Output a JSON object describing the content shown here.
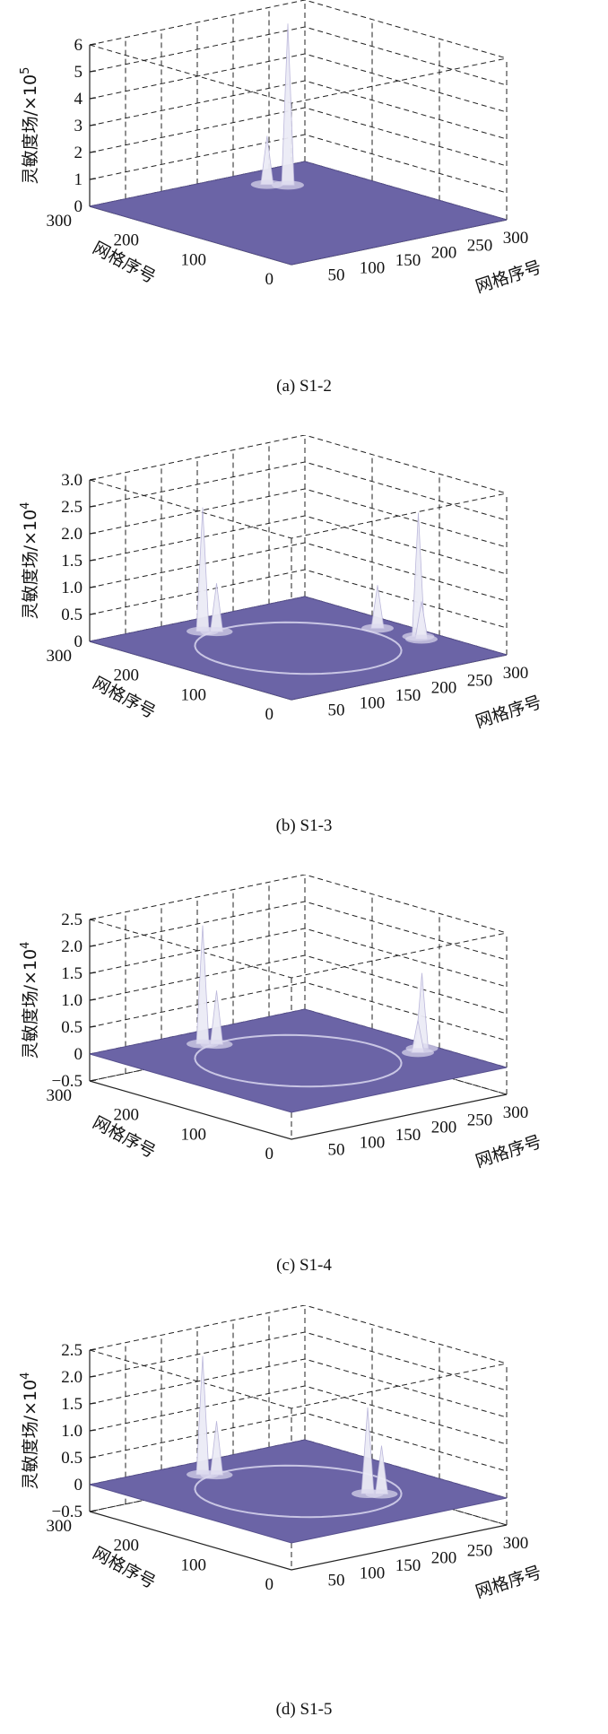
{
  "colors": {
    "surface": "#6b64a6",
    "surface_edge": "#57508e",
    "peak": "#ecebf6",
    "ring": "#c9c6e4",
    "gridline": "#222222"
  },
  "chart_data": [
    {
      "type": "surface3d",
      "caption": "(a) S1-2",
      "zlabel_text": "灵敏度场/×10",
      "zlabel_exp": "5",
      "xlabel": "网格序号",
      "ylabel": "网格序号",
      "zticks": [
        "0",
        "1",
        "2",
        "3",
        "4",
        "5",
        "6"
      ],
      "zlim": [
        0,
        6
      ],
      "xticks": [
        "50",
        "100",
        "150",
        "200",
        "250",
        "300"
      ],
      "yticks": [
        "0",
        "100",
        "200",
        "300"
      ],
      "xlim": [
        0,
        300
      ],
      "ylim": [
        0,
        300
      ],
      "ring": false,
      "peaks": [
        {
          "x": 220,
          "y": 240,
          "z": 6.0
        },
        {
          "x": 205,
          "y": 255,
          "z": 1.8
        }
      ]
    },
    {
      "type": "surface3d",
      "caption": "(b) S1-3",
      "zlabel_text": "灵敏度场/×10",
      "zlabel_exp": "4",
      "xlabel": "网格序号",
      "ylabel": "网格序号",
      "zticks": [
        "0",
        "0.5",
        "1.0",
        "1.5",
        "2.0",
        "2.5",
        "3.0"
      ],
      "zlim": [
        0,
        3.0
      ],
      "xticks": [
        "50",
        "100",
        "150",
        "200",
        "250",
        "300"
      ],
      "yticks": [
        "0",
        "100",
        "200",
        "300"
      ],
      "xlim": [
        0,
        300
      ],
      "ylim": [
        0,
        300
      ],
      "ring": true,
      "peaks": [
        {
          "x": 120,
          "y": 260,
          "z": 2.3
        },
        {
          "x": 130,
          "y": 250,
          "z": 0.9
        },
        {
          "x": 270,
          "y": 160,
          "z": 0.8
        },
        {
          "x": 280,
          "y": 110,
          "z": 2.3
        },
        {
          "x": 275,
          "y": 100,
          "z": 0.7
        }
      ]
    },
    {
      "type": "surface3d",
      "caption": "(c) S1-4",
      "zlabel_text": "灵敏度场/×10",
      "zlabel_exp": "4",
      "xlabel": "网格序号",
      "ylabel": "网格序号",
      "zticks": [
        "−0.5",
        "0",
        "0.5",
        "1.0",
        "1.5",
        "2.0",
        "2.5"
      ],
      "zlim": [
        -0.5,
        2.5
      ],
      "xticks": [
        "50",
        "100",
        "150",
        "200",
        "250",
        "300"
      ],
      "yticks": [
        "0",
        "100",
        "200",
        "300"
      ],
      "xlim": [
        0,
        300
      ],
      "ylim": [
        0,
        300
      ],
      "ring": true,
      "peaks": [
        {
          "x": 120,
          "y": 260,
          "z": 2.2
        },
        {
          "x": 130,
          "y": 250,
          "z": 1.0
        },
        {
          "x": 285,
          "y": 110,
          "z": 1.4
        },
        {
          "x": 270,
          "y": 100,
          "z": 0.6
        }
      ]
    },
    {
      "type": "surface3d",
      "caption": "(d) S1-5",
      "zlabel_text": "灵敏度场/×10",
      "zlabel_exp": "4",
      "xlabel": "网格序号",
      "ylabel": "网格序号",
      "zticks": [
        "−0.5",
        "0",
        "0.5",
        "1.0",
        "1.5",
        "2.0",
        "2.5"
      ],
      "zlim": [
        -0.5,
        2.5
      ],
      "xticks": [
        "50",
        "100",
        "150",
        "200",
        "250",
        "300"
      ],
      "yticks": [
        "0",
        "100",
        "200",
        "300"
      ],
      "xlim": [
        0,
        300
      ],
      "ylim": [
        0,
        300
      ],
      "ring": true,
      "peaks": [
        {
          "x": 120,
          "y": 260,
          "z": 2.2
        },
        {
          "x": 130,
          "y": 250,
          "z": 1.0
        },
        {
          "x": 200,
          "y": 100,
          "z": 1.6
        },
        {
          "x": 210,
          "y": 90,
          "z": 0.9
        }
      ]
    }
  ]
}
